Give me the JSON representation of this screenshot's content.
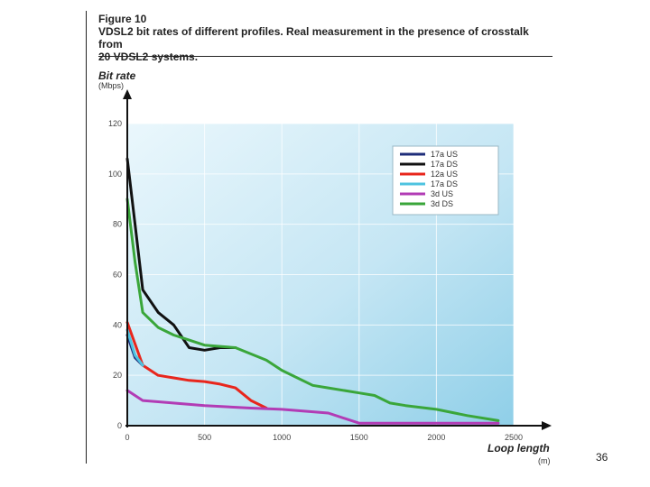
{
  "figure_label": "Figure 10",
  "title_line1": "VDSL2 bit rates of different profiles. Real measurement in the presence of crosstalk from",
  "title_line2": "20 VDSL2 systems.",
  "page_number": "36",
  "chart_data": {
    "type": "line",
    "title": "VDSL2 bit rates of different profiles. Real measurement in the presence of crosstalk from 20 VDSL2 systems.",
    "ylabel": "Bit rate",
    "yunit": "(Mbps)",
    "xlabel": "Loop length",
    "xunit": "(m)",
    "xlim": [
      0,
      2500
    ],
    "ylim": [
      0,
      120
    ],
    "xticks": [
      0,
      500,
      1000,
      1500,
      2000,
      2500
    ],
    "yticks": [
      0,
      20,
      40,
      60,
      80,
      100,
      120
    ],
    "legend_position": "top-right",
    "series": [
      {
        "name": "17a US",
        "color": "#1f2d7a",
        "x": [
          0,
          50,
          100
        ],
        "y": [
          36,
          27,
          24
        ]
      },
      {
        "name": "17a DS",
        "color": "#111111",
        "x": [
          0,
          50,
          100,
          200,
          300,
          400,
          500,
          600,
          700
        ],
        "y": [
          106,
          80,
          54,
          45,
          40,
          31,
          30,
          31,
          31
        ]
      },
      {
        "name": "12a US",
        "color": "#e8261c",
        "x": [
          0,
          100,
          200,
          300,
          400,
          500,
          600,
          700,
          800,
          900
        ],
        "y": [
          41,
          24,
          20,
          19,
          18,
          17.5,
          16.5,
          15,
          10,
          7
        ]
      },
      {
        "name": "17a DS",
        "color": "#4ec3e0",
        "x": [
          0,
          50,
          100
        ],
        "y": [
          38,
          28,
          24
        ]
      },
      {
        "name": "3d US",
        "color": "#b23cb5",
        "x": [
          0,
          100,
          200,
          500,
          800,
          1000,
          1300,
          1500,
          1800,
          2000,
          2400
        ],
        "y": [
          14,
          10,
          9.5,
          8,
          7,
          6.5,
          5,
          1,
          1,
          1,
          1
        ]
      },
      {
        "name": "3d DS",
        "color": "#3aa63a",
        "x": [
          0,
          50,
          100,
          200,
          300,
          400,
          500,
          700,
          900,
          1000,
          1200,
          1300,
          1500,
          1600,
          1700,
          1800,
          2000,
          2200,
          2400
        ],
        "y": [
          90,
          65,
          45,
          39,
          36,
          34,
          32,
          31,
          26,
          22,
          16,
          15,
          13,
          12,
          9,
          8,
          6.5,
          4,
          2
        ]
      }
    ]
  }
}
